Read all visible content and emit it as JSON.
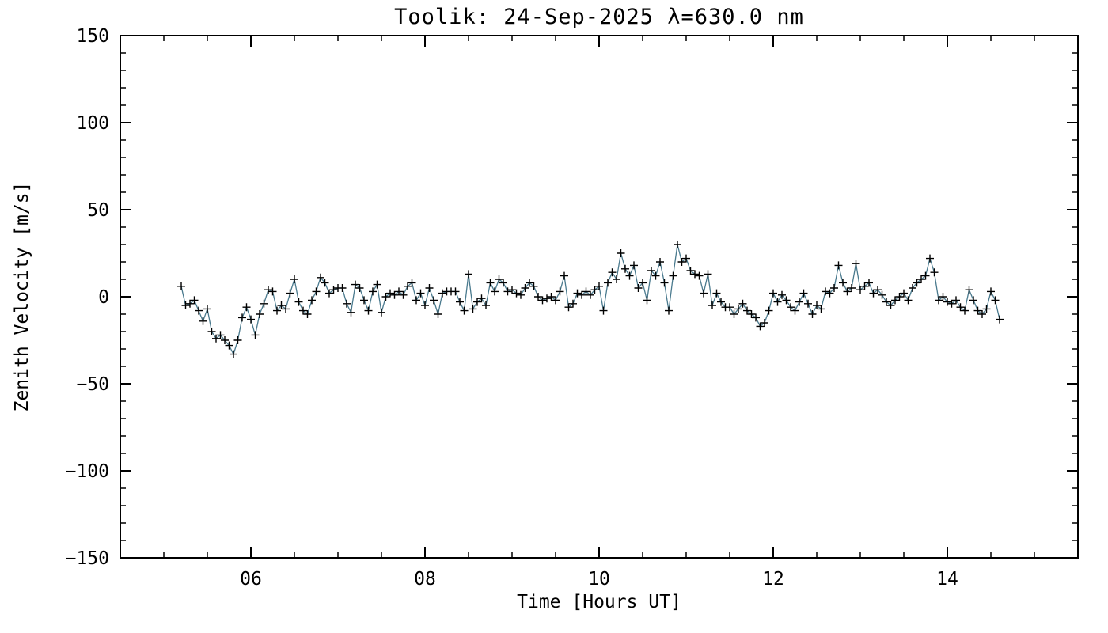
{
  "page": {
    "background": "#ffffff"
  },
  "chart_data": {
    "type": "line",
    "title": "Toolik: 24-Sep-2025 λ=630.0 nm",
    "xlabel": "Time [Hours UT]",
    "ylabel": "Zenith Velocity [m/s]",
    "xlim": [
      4.5,
      15.5
    ],
    "ylim": [
      -150,
      150
    ],
    "grid": "off",
    "legend": "none",
    "x_major_ticks": [
      6,
      8,
      10,
      12,
      14
    ],
    "x_tick_labels": [
      "06",
      "08",
      "10",
      "12",
      "14"
    ],
    "x_minor_step": 0.5,
    "y_major_ticks": [
      -150,
      -100,
      -50,
      0,
      50,
      100,
      150
    ],
    "y_tick_labels": [
      "−150",
      "−100",
      "−50",
      "0",
      "50",
      "100",
      "150"
    ],
    "y_minor_step": 10,
    "marker": "plus",
    "line_color": "#4a7a8e",
    "marker_color": "#000000",
    "axis_color": "#000000",
    "series": [
      {
        "name": "zenith_velocity",
        "x_start": 5.2,
        "x_step": 0.05,
        "values": [
          6,
          -5,
          -4,
          -2,
          -8,
          -14,
          -7,
          -20,
          -24,
          -22,
          -25,
          -28,
          -33,
          -25,
          -12,
          -6,
          -13,
          -22,
          -10,
          -4,
          4,
          3,
          -8,
          -5,
          -7,
          2,
          10,
          -3,
          -8,
          -10,
          -2,
          3,
          11,
          8,
          2,
          4,
          5,
          5,
          -4,
          -9,
          7,
          5,
          -2,
          -8,
          3,
          7,
          -9,
          0,
          2,
          1,
          3,
          1,
          6,
          8,
          -2,
          2,
          -5,
          5,
          -2,
          -10,
          2,
          3,
          3,
          3,
          -3,
          -8,
          13,
          -7,
          -3,
          -1,
          -5,
          8,
          3,
          10,
          8,
          3,
          4,
          2,
          1,
          5,
          8,
          6,
          0,
          -2,
          -1,
          0,
          -2,
          3,
          12,
          -6,
          -4,
          2,
          1,
          3,
          1,
          4,
          6,
          -8,
          8,
          14,
          10,
          25,
          16,
          12,
          18,
          5,
          8,
          -2,
          15,
          12,
          20,
          8,
          -8,
          12,
          30,
          20,
          22,
          15,
          13,
          12,
          2,
          13,
          -5,
          2,
          -3,
          -6,
          -6,
          -10,
          -7,
          -4,
          -8,
          -10,
          -12,
          -17,
          -15,
          -8,
          2,
          -3,
          1,
          -2,
          -6,
          -8,
          -3,
          2,
          -4,
          -10,
          -5,
          -7,
          3,
          2,
          5,
          18,
          8,
          3,
          5,
          19,
          4,
          6,
          8,
          2,
          4,
          1,
          -3,
          -5,
          -2,
          0,
          2,
          -2,
          5,
          8,
          10,
          12,
          22,
          14,
          -2,
          0,
          -3,
          -4,
          -2,
          -6,
          -8,
          4,
          -2,
          -8,
          -10,
          -7,
          3,
          -2,
          -13
        ]
      }
    ]
  }
}
